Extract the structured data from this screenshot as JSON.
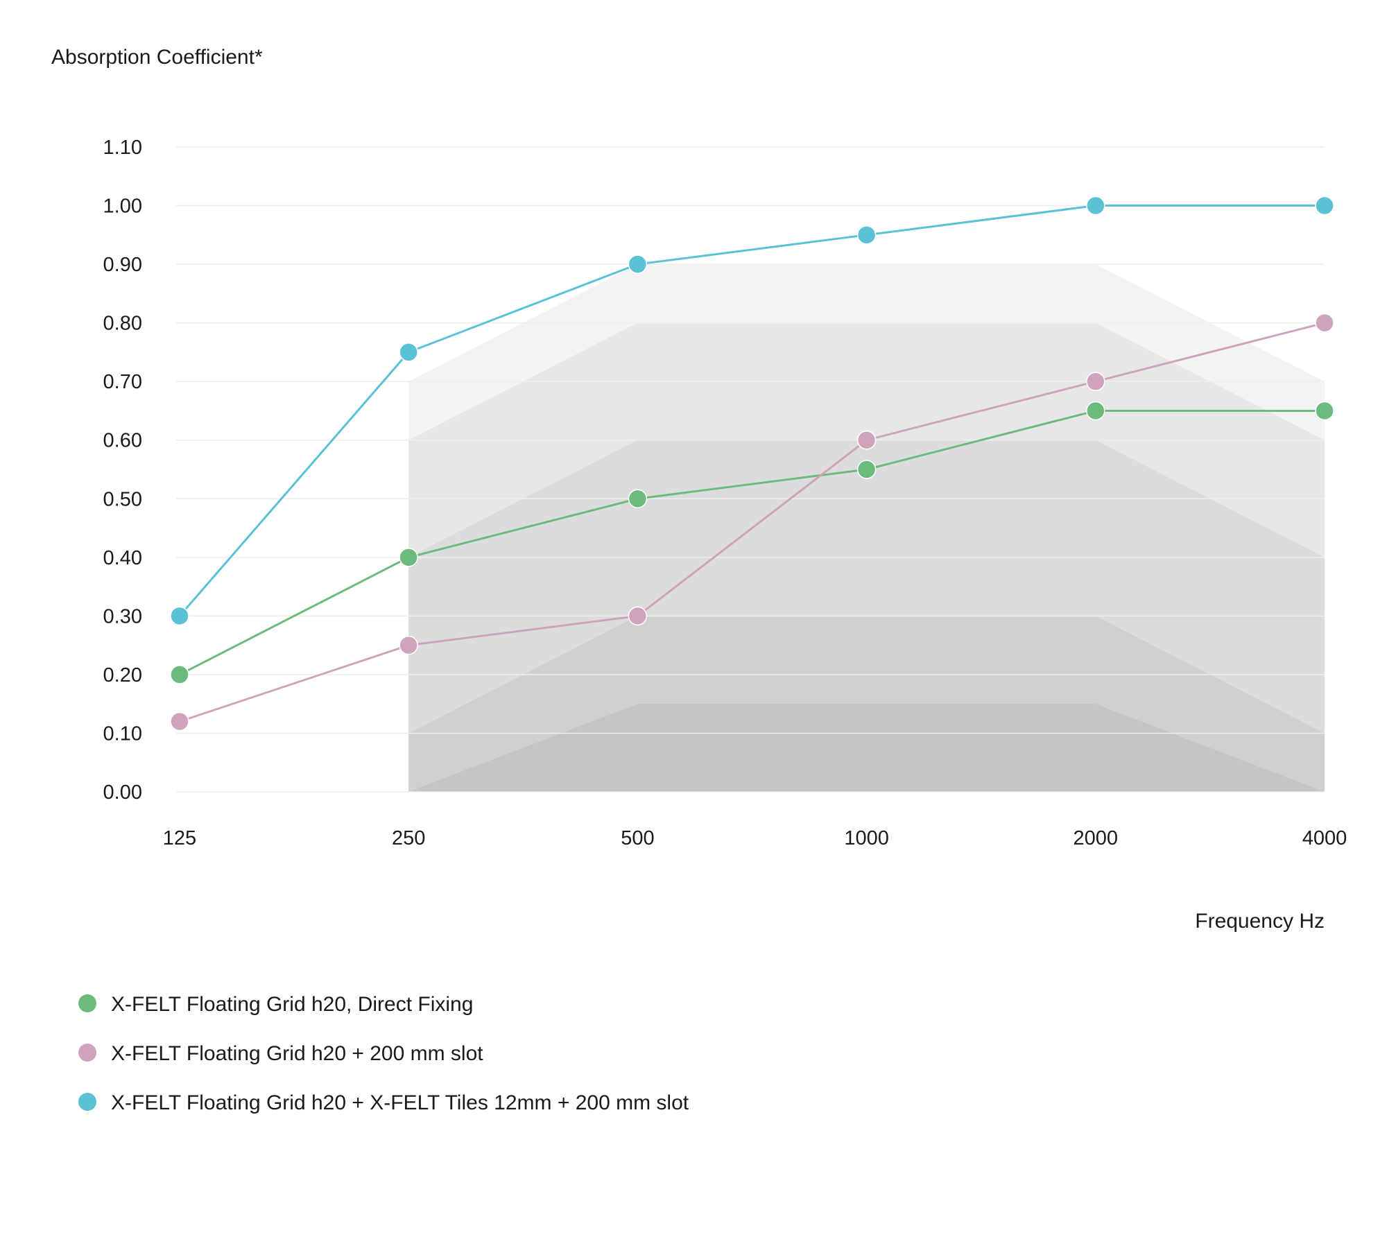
{
  "chart_data": {
    "type": "line",
    "ylabel": "Absorption Coefficient*",
    "xlabel": "Frequency Hz",
    "categories": [
      "125",
      "250",
      "500",
      "1000",
      "2000",
      "4000"
    ],
    "y_ticks": [
      "0.00",
      "0.10",
      "0.20",
      "0.30",
      "0.40",
      "0.50",
      "0.60",
      "0.70",
      "0.80",
      "0.90",
      "1.00",
      "1.10"
    ],
    "ylim": [
      0,
      1.1
    ],
    "grid": true,
    "legend_position": "bottom-left",
    "series": [
      {
        "name": "X-FELT Floating Grid h20, Direct Fixing",
        "color": "#6cba7d",
        "values": [
          0.2,
          0.4,
          0.5,
          0.55,
          0.65,
          0.65
        ]
      },
      {
        "name": "X-FELT Floating Grid h20 + 200 mm slot",
        "color": "#cfa3bc",
        "values": [
          0.12,
          0.25,
          0.3,
          0.6,
          0.7,
          0.8
        ]
      },
      {
        "name": "X-FELT Floating Grid h20 + X-FELT Tiles 12mm + 200 mm slot",
        "color": "#5bc2d6",
        "values": [
          0.3,
          0.75,
          0.9,
          0.95,
          1.0,
          1.0
        ]
      }
    ],
    "background_bands": [
      {
        "values": [
          null,
          0.7,
          0.9,
          0.9,
          0.9,
          0.7
        ],
        "color": "#f3f3f3"
      },
      {
        "values": [
          null,
          0.6,
          0.8,
          0.8,
          0.8,
          0.6
        ],
        "color": "#e8e7e8"
      },
      {
        "values": [
          null,
          0.4,
          0.6,
          0.6,
          0.6,
          0.4
        ],
        "color": "#dcdcdd"
      },
      {
        "values": [
          null,
          0.1,
          0.3,
          0.3,
          0.3,
          0.1
        ],
        "color": "#d0d0d0"
      },
      {
        "values": [
          null,
          0.0,
          0.15,
          0.15,
          0.15,
          0.0
        ],
        "color": "#c5c5c5"
      }
    ],
    "gridline_color": "#eeeeee"
  }
}
